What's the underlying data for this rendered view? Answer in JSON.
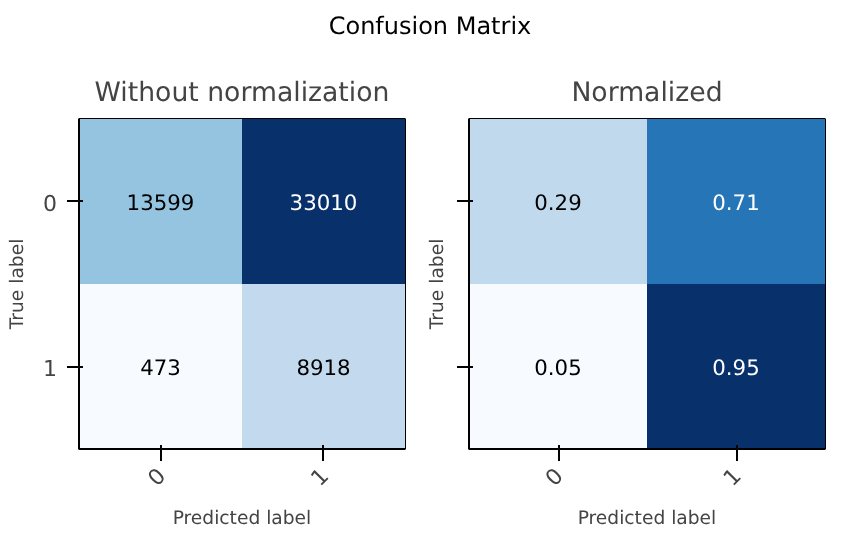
{
  "chart_data": [
    {
      "type": "heatmap",
      "title": "Without normalization",
      "xlabel": "Predicted label",
      "ylabel": "True label",
      "annotations": [
        "Confusion Matrix"
      ],
      "categories": [
        "0",
        "1"
      ],
      "y_categories": [
        "0",
        "1"
      ],
      "cells": [
        [
          13599,
          33010
        ],
        [
          473,
          8918
        ]
      ],
      "data_labels": true
    },
    {
      "type": "heatmap",
      "title": "Normalized",
      "xlabel": "Predicted label",
      "ylabel": "True label",
      "categories": [
        "0",
        "1"
      ],
      "y_categories": [
        "0",
        "1"
      ],
      "cells": [
        [
          0.29,
          0.71
        ],
        [
          0.05,
          0.95
        ]
      ],
      "data_labels": true,
      "tick_labels": "x"
    }
  ]
}
